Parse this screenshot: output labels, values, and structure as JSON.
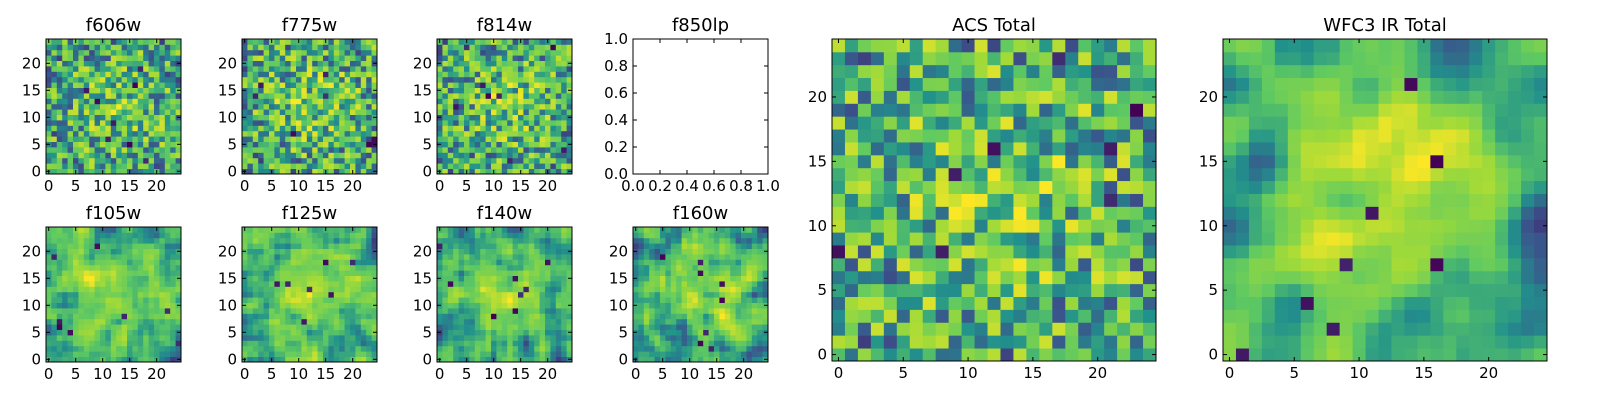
{
  "figure": {
    "description_type": "multi-panel image grid",
    "colormap": [
      "#440154",
      "#3b528b",
      "#21918c",
      "#5ec962",
      "#a0da39",
      "#fde725"
    ]
  },
  "chart_data": [
    {
      "type": "heatmap",
      "title": "f606w",
      "grid": [
        25,
        25
      ],
      "seed": 11,
      "smooth": 0,
      "xticks": [
        "0",
        "5",
        "10",
        "15",
        "20"
      ],
      "yticks": [
        "0",
        "5",
        "10",
        "15",
        "20"
      ],
      "xlim": [
        0,
        25
      ],
      "ylim": [
        0,
        25
      ]
    },
    {
      "type": "heatmap",
      "title": "f775w",
      "grid": [
        25,
        25
      ],
      "seed": 23,
      "smooth": 0,
      "xticks": [
        "0",
        "5",
        "10",
        "15",
        "20"
      ],
      "yticks": [
        "0",
        "5",
        "10",
        "15",
        "20"
      ],
      "xlim": [
        0,
        25
      ],
      "ylim": [
        0,
        25
      ]
    },
    {
      "type": "heatmap",
      "title": "f814w",
      "grid": [
        25,
        25
      ],
      "seed": 37,
      "smooth": 0,
      "xticks": [
        "0",
        "5",
        "10",
        "15",
        "20"
      ],
      "yticks": [
        "0",
        "5",
        "10",
        "15",
        "20"
      ],
      "xlim": [
        0,
        25
      ],
      "ylim": [
        0,
        25
      ]
    },
    {
      "type": "empty",
      "title": "f850lp",
      "xticks": [
        "0.0",
        "0.2",
        "0.4",
        "0.6",
        "0.8",
        "1.0"
      ],
      "yticks": [
        "0.0",
        "0.2",
        "0.4",
        "0.6",
        "0.8",
        "1.0"
      ],
      "xlim": [
        0,
        1
      ],
      "ylim": [
        0,
        1
      ]
    },
    {
      "type": "heatmap",
      "title": "f105w",
      "grid": [
        25,
        25
      ],
      "seed": 41,
      "smooth": 1,
      "xticks": [
        "0",
        "5",
        "10",
        "15",
        "20"
      ],
      "yticks": [
        "0",
        "5",
        "10",
        "15",
        "20"
      ],
      "xlim": [
        0,
        25
      ],
      "ylim": [
        0,
        25
      ]
    },
    {
      "type": "heatmap",
      "title": "f125w",
      "grid": [
        25,
        25
      ],
      "seed": 53,
      "smooth": 1,
      "xticks": [
        "0",
        "5",
        "10",
        "15",
        "20"
      ],
      "yticks": [
        "0",
        "5",
        "10",
        "15",
        "20"
      ],
      "xlim": [
        0,
        25
      ],
      "ylim": [
        0,
        25
      ]
    },
    {
      "type": "heatmap",
      "title": "f140w",
      "grid": [
        25,
        25
      ],
      "seed": 67,
      "smooth": 1,
      "xticks": [
        "0",
        "5",
        "10",
        "15",
        "20"
      ],
      "yticks": [
        "0",
        "5",
        "10",
        "15",
        "20"
      ],
      "xlim": [
        0,
        25
      ],
      "ylim": [
        0,
        25
      ]
    },
    {
      "type": "heatmap",
      "title": "f160w",
      "grid": [
        25,
        25
      ],
      "seed": 79,
      "smooth": 1,
      "xticks": [
        "0",
        "5",
        "10",
        "15",
        "20"
      ],
      "yticks": [
        "0",
        "5",
        "10",
        "15",
        "20"
      ],
      "xlim": [
        0,
        25
      ],
      "ylim": [
        0,
        25
      ]
    },
    {
      "type": "heatmap",
      "title": "ACS Total",
      "grid": [
        25,
        25
      ],
      "seed": 97,
      "smooth": 0,
      "xticks": [
        "0",
        "5",
        "10",
        "15",
        "20"
      ],
      "yticks": [
        "0",
        "5",
        "10",
        "15",
        "20"
      ],
      "xlim": [
        0,
        25
      ],
      "ylim": [
        0,
        25
      ]
    },
    {
      "type": "heatmap",
      "title": "WFC3 IR Total",
      "grid": [
        25,
        25
      ],
      "seed": 113,
      "smooth": 2,
      "xticks": [
        "0",
        "5",
        "10",
        "15",
        "20"
      ],
      "yticks": [
        "0",
        "5",
        "10",
        "15",
        "20"
      ],
      "xlim": [
        0,
        25
      ],
      "ylim": [
        0,
        25
      ]
    }
  ]
}
